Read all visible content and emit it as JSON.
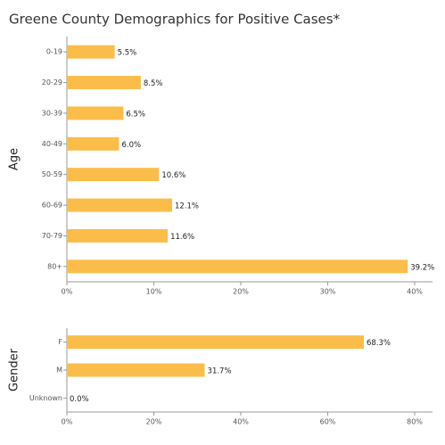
{
  "chart_data": [
    {
      "type": "bar",
      "orientation": "horizontal",
      "title": "Greene County Demographics for Positive Cases*",
      "ylabel": "Age",
      "categories": [
        "0-19",
        "20-29",
        "30-39",
        "40-49",
        "50-59",
        "60-69",
        "70-79",
        "80+"
      ],
      "values": [
        5.5,
        8.5,
        6.5,
        6.0,
        10.6,
        12.1,
        11.6,
        39.2
      ],
      "value_labels": [
        "5.5%",
        "8.5%",
        "6.5%",
        "6.0%",
        "10.6%",
        "12.1%",
        "11.6%",
        "39.2%"
      ],
      "color": "#fbbd4a",
      "xlim": [
        0,
        40
      ],
      "xticks": [
        {
          "value": 0,
          "label": "0%"
        },
        {
          "value": 10,
          "label": "10%"
        },
        {
          "value": 20,
          "label": "20%"
        },
        {
          "value": 30,
          "label": "30%"
        },
        {
          "value": 40,
          "label": "40%"
        }
      ],
      "grid": false
    },
    {
      "type": "bar",
      "orientation": "horizontal",
      "ylabel": "Gender",
      "categories": [
        "F",
        "M",
        "Unknown"
      ],
      "values": [
        68.3,
        31.7,
        0.0
      ],
      "value_labels": [
        "68.3%",
        "31.7%",
        "0.0%"
      ],
      "color": "#fbbd4a",
      "xlim": [
        0,
        80
      ],
      "xticks": [
        {
          "value": 0,
          "label": "0%"
        },
        {
          "value": 20,
          "label": "20%"
        },
        {
          "value": 40,
          "label": "40%"
        },
        {
          "value": 60,
          "label": "60%"
        },
        {
          "value": 80,
          "label": "80%"
        }
      ],
      "grid": false
    }
  ]
}
